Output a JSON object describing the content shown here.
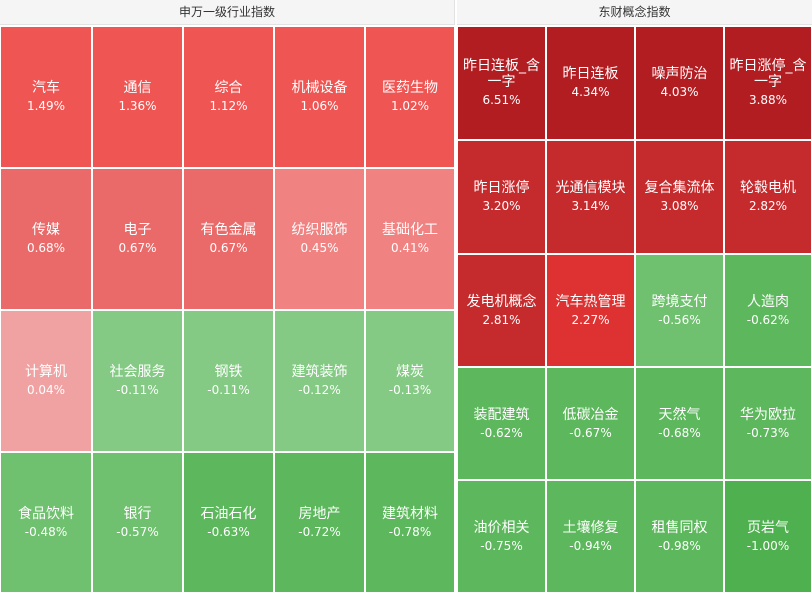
{
  "left_panel": {
    "title": "申万一级行业指数",
    "tiles": [
      {
        "name": "汽车",
        "value": "1.49%",
        "color": "#ee5553"
      },
      {
        "name": "通信",
        "value": "1.36%",
        "color": "#ee5553"
      },
      {
        "name": "综合",
        "value": "1.12%",
        "color": "#ee5553"
      },
      {
        "name": "机械设备",
        "value": "1.06%",
        "color": "#ee5553"
      },
      {
        "name": "医药生物",
        "value": "1.02%",
        "color": "#ee5553"
      },
      {
        "name": "传媒",
        "value": "0.68%",
        "color": "#ea6a69"
      },
      {
        "name": "电子",
        "value": "0.67%",
        "color": "#ea6a69"
      },
      {
        "name": "有色金属",
        "value": "0.67%",
        "color": "#ea6a69"
      },
      {
        "name": "纺织服饰",
        "value": "0.45%",
        "color": "#f08382"
      },
      {
        "name": "基础化工",
        "value": "0.41%",
        "color": "#f08382"
      },
      {
        "name": "计算机",
        "value": "0.04%",
        "color": "#f0a1a1"
      },
      {
        "name": "社会服务",
        "value": "-0.11%",
        "color": "#84c984"
      },
      {
        "name": "钢铁",
        "value": "-0.11%",
        "color": "#84c984"
      },
      {
        "name": "建筑装饰",
        "value": "-0.12%",
        "color": "#84c984"
      },
      {
        "name": "煤炭",
        "value": "-0.13%",
        "color": "#84c984"
      },
      {
        "name": "食品饮料",
        "value": "-0.48%",
        "color": "#6fc06f"
      },
      {
        "name": "银行",
        "value": "-0.57%",
        "color": "#6fc06f"
      },
      {
        "name": "石油石化",
        "value": "-0.63%",
        "color": "#5db85d"
      },
      {
        "name": "房地产",
        "value": "-0.72%",
        "color": "#5db85d"
      },
      {
        "name": "建筑材料",
        "value": "-0.78%",
        "color": "#5db85d"
      }
    ]
  },
  "right_panel": {
    "title": "东财概念指数",
    "tiles": [
      {
        "name": "昨日连板_含一字",
        "value": "6.51%",
        "color": "#b21d22"
      },
      {
        "name": "昨日连板",
        "value": "4.34%",
        "color": "#b21d22"
      },
      {
        "name": "噪声防治",
        "value": "4.03%",
        "color": "#b21d22"
      },
      {
        "name": "昨日涨停_含一字",
        "value": "3.88%",
        "color": "#b21d22"
      },
      {
        "name": "昨日涨停",
        "value": "3.20%",
        "color": "#c52a2d"
      },
      {
        "name": "光通信模块",
        "value": "3.14%",
        "color": "#c52a2d"
      },
      {
        "name": "复合集流体",
        "value": "3.08%",
        "color": "#c52a2d"
      },
      {
        "name": "轮毂电机",
        "value": "2.82%",
        "color": "#c52a2d"
      },
      {
        "name": "发电机概念",
        "value": "2.81%",
        "color": "#c52a2d"
      },
      {
        "name": "汽车热管理",
        "value": "2.27%",
        "color": "#de3232"
      },
      {
        "name": "跨境支付",
        "value": "-0.56%",
        "color": "#6fc06f"
      },
      {
        "name": "人造肉",
        "value": "-0.62%",
        "color": "#5db85d"
      },
      {
        "name": "装配建筑",
        "value": "-0.62%",
        "color": "#5db85d"
      },
      {
        "name": "低碳冶金",
        "value": "-0.67%",
        "color": "#5db85d"
      },
      {
        "name": "天然气",
        "value": "-0.68%",
        "color": "#5db85d"
      },
      {
        "name": "华为欧拉",
        "value": "-0.73%",
        "color": "#5db85d"
      },
      {
        "name": "油价相关",
        "value": "-0.75%",
        "color": "#5db85d"
      },
      {
        "name": "土壤修复",
        "value": "-0.94%",
        "color": "#5db85d"
      },
      {
        "name": "租售同权",
        "value": "-0.98%",
        "color": "#5db85d"
      },
      {
        "name": "页岩气",
        "value": "-1.00%",
        "color": "#4fb04f"
      }
    ]
  }
}
